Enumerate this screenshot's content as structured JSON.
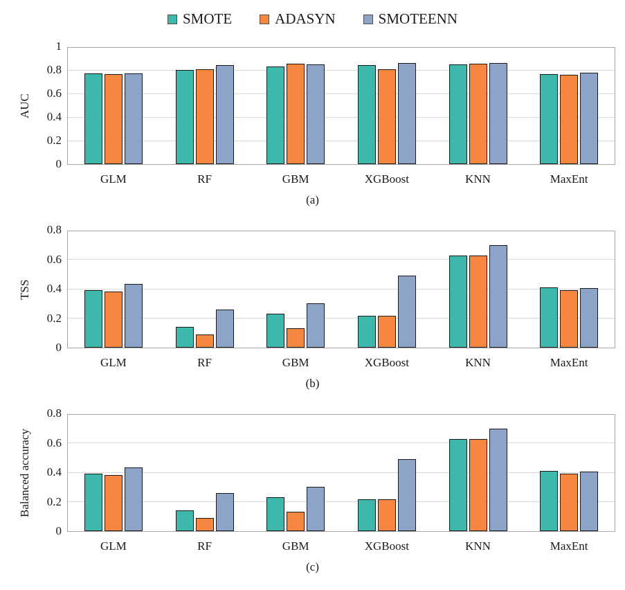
{
  "legend": {
    "items": [
      {
        "label": "SMOTE",
        "color": "#3eb8ab"
      },
      {
        "label": "ADASYN",
        "color": "#f58741"
      },
      {
        "label": "SMOTEENN",
        "color": "#8ea3c8"
      }
    ]
  },
  "styles": {
    "bar_border": "#1b1b1b",
    "gridline": "#d9d9d9",
    "plot_frame": "#a6a6a6"
  },
  "chart_data": [
    {
      "type": "bar",
      "caption": "(a)",
      "ylabel": "AUC",
      "xlabel": "",
      "ylim": [
        0,
        1
      ],
      "yticks": [
        0,
        0.2,
        0.4,
        0.6,
        0.8,
        1
      ],
      "ytick_labels": [
        "0",
        "0.2",
        "0.4",
        "0.6",
        "0.8",
        "1"
      ],
      "grid": true,
      "legend_position": "top-center",
      "categories": [
        "GLM",
        "RF",
        "GBM",
        "XGBoost",
        "KNN",
        "MaxEnt"
      ],
      "series": [
        {
          "name": "SMOTE",
          "values": [
            0.77,
            0.8,
            0.83,
            0.84,
            0.845,
            0.765
          ]
        },
        {
          "name": "ADASYN",
          "values": [
            0.765,
            0.805,
            0.855,
            0.805,
            0.855,
            0.76
          ]
        },
        {
          "name": "SMOTEENN",
          "values": [
            0.77,
            0.84,
            0.85,
            0.86,
            0.86,
            0.775
          ]
        }
      ]
    },
    {
      "type": "bar",
      "caption": "(b)",
      "ylabel": "TSS",
      "xlabel": "",
      "ylim": [
        0,
        0.8
      ],
      "yticks": [
        0,
        0.2,
        0.4,
        0.6,
        0.8
      ],
      "ytick_labels": [
        "0",
        "0.2",
        "0.4",
        "0.6",
        "0.8"
      ],
      "grid": true,
      "categories": [
        "GLM",
        "RF",
        "GBM",
        "XGBoost",
        "KNN",
        "MaxEnt"
      ],
      "series": [
        {
          "name": "SMOTE",
          "values": [
            0.39,
            0.14,
            0.23,
            0.215,
            0.625,
            0.41
          ]
        },
        {
          "name": "ADASYN",
          "values": [
            0.38,
            0.09,
            0.13,
            0.215,
            0.625,
            0.39
          ]
        },
        {
          "name": "SMOTEENN",
          "values": [
            0.435,
            0.26,
            0.3,
            0.49,
            0.695,
            0.405
          ]
        }
      ]
    },
    {
      "type": "bar",
      "caption": "(c)",
      "ylabel": "Balanced accuracy",
      "xlabel": "",
      "ylim": [
        0,
        0.8
      ],
      "yticks": [
        0,
        0.2,
        0.4,
        0.6,
        0.8
      ],
      "ytick_labels": [
        "0",
        "0.2",
        "0.4",
        "0.6",
        "0.8"
      ],
      "grid": true,
      "categories": [
        "GLM",
        "RF",
        "GBM",
        "XGBoost",
        "KNN",
        "MaxEnt"
      ],
      "series": [
        {
          "name": "SMOTE",
          "values": [
            0.39,
            0.14,
            0.23,
            0.215,
            0.625,
            0.41
          ]
        },
        {
          "name": "ADASYN",
          "values": [
            0.38,
            0.09,
            0.13,
            0.215,
            0.625,
            0.39
          ]
        },
        {
          "name": "SMOTEENN",
          "values": [
            0.435,
            0.26,
            0.3,
            0.49,
            0.695,
            0.405
          ]
        }
      ]
    }
  ]
}
